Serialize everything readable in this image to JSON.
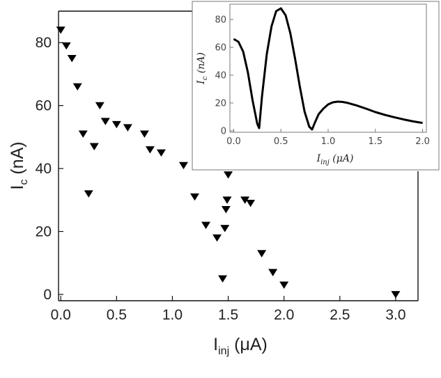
{
  "chart_data": [
    {
      "type": "scatter",
      "marker": "triangle-down",
      "title": "",
      "xlabel_main": "I",
      "xlabel_sub": "inj",
      "xlabel_unit": " (μA)",
      "ylabel_main": "I",
      "ylabel_sub": "c",
      "ylabel_unit": " (nA)",
      "xlim": [
        -0.02,
        3.2
      ],
      "ylim": [
        -2,
        90
      ],
      "xticks": [
        0.0,
        0.5,
        1.0,
        1.5,
        2.0,
        2.5,
        3.0
      ],
      "xtick_labels": [
        "0.0",
        "0.5",
        "1.0",
        "1.5",
        "2.0",
        "2.5",
        "3.0"
      ],
      "yticks": [
        0,
        20,
        40,
        60,
        80
      ],
      "ytick_labels": [
        "0",
        "20",
        "40",
        "60",
        "80"
      ],
      "color": "#000000",
      "points": [
        {
          "x": 0.0,
          "y": 84
        },
        {
          "x": 0.05,
          "y": 79
        },
        {
          "x": 0.1,
          "y": 75
        },
        {
          "x": 0.15,
          "y": 66
        },
        {
          "x": 0.2,
          "y": 51
        },
        {
          "x": 0.25,
          "y": 32
        },
        {
          "x": 0.3,
          "y": 47
        },
        {
          "x": 0.35,
          "y": 60
        },
        {
          "x": 0.4,
          "y": 55
        },
        {
          "x": 0.5,
          "y": 54
        },
        {
          "x": 0.6,
          "y": 53
        },
        {
          "x": 0.75,
          "y": 51
        },
        {
          "x": 0.8,
          "y": 46
        },
        {
          "x": 0.9,
          "y": 45
        },
        {
          "x": 1.1,
          "y": 41
        },
        {
          "x": 1.2,
          "y": 31
        },
        {
          "x": 1.3,
          "y": 22
        },
        {
          "x": 1.4,
          "y": 18
        },
        {
          "x": 1.45,
          "y": 5
        },
        {
          "x": 1.47,
          "y": 21
        },
        {
          "x": 1.48,
          "y": 27
        },
        {
          "x": 1.49,
          "y": 30
        },
        {
          "x": 1.5,
          "y": 38
        },
        {
          "x": 1.65,
          "y": 30
        },
        {
          "x": 1.7,
          "y": 29
        },
        {
          "x": 1.8,
          "y": 13
        },
        {
          "x": 1.9,
          "y": 7
        },
        {
          "x": 2.0,
          "y": 3
        },
        {
          "x": 3.0,
          "y": 0
        }
      ]
    },
    {
      "type": "line",
      "title": "",
      "xlabel_main": "I",
      "xlabel_sub": "inj",
      "xlabel_unit": " (μA)",
      "ylabel_main": "I",
      "ylabel_sub": "c",
      "ylabel_unit": " (nA)",
      "xlim": [
        -0.04,
        2.04
      ],
      "ylim": [
        -1,
        91
      ],
      "xticks": [
        0.0,
        0.5,
        1.0,
        1.5,
        2.0
      ],
      "xtick_labels": [
        "0.0",
        "0.5",
        "1.0",
        "1.5",
        "2.0"
      ],
      "yticks": [
        0,
        20,
        40,
        60,
        80
      ],
      "ytick_labels": [
        "0",
        "20",
        "40",
        "60",
        "80"
      ],
      "color": "#000000",
      "x": [
        0.0,
        0.05,
        0.1,
        0.15,
        0.2,
        0.25,
        0.27,
        0.3,
        0.35,
        0.4,
        0.45,
        0.5,
        0.55,
        0.6,
        0.65,
        0.7,
        0.75,
        0.8,
        0.83,
        0.86,
        0.9,
        0.95,
        1.0,
        1.05,
        1.1,
        1.15,
        1.2,
        1.3,
        1.4,
        1.5,
        1.6,
        1.7,
        1.8,
        1.9,
        2.0
      ],
      "y": [
        66,
        64,
        57,
        42,
        22,
        5,
        2,
        25,
        55,
        75,
        86,
        88,
        83,
        70,
        52,
        32,
        14,
        3,
        1,
        6,
        12,
        16,
        19,
        20.5,
        21,
        20.8,
        20.2,
        18.3,
        16,
        13.5,
        11.5,
        9.8,
        8.2,
        6.8,
        5.7
      ]
    }
  ]
}
